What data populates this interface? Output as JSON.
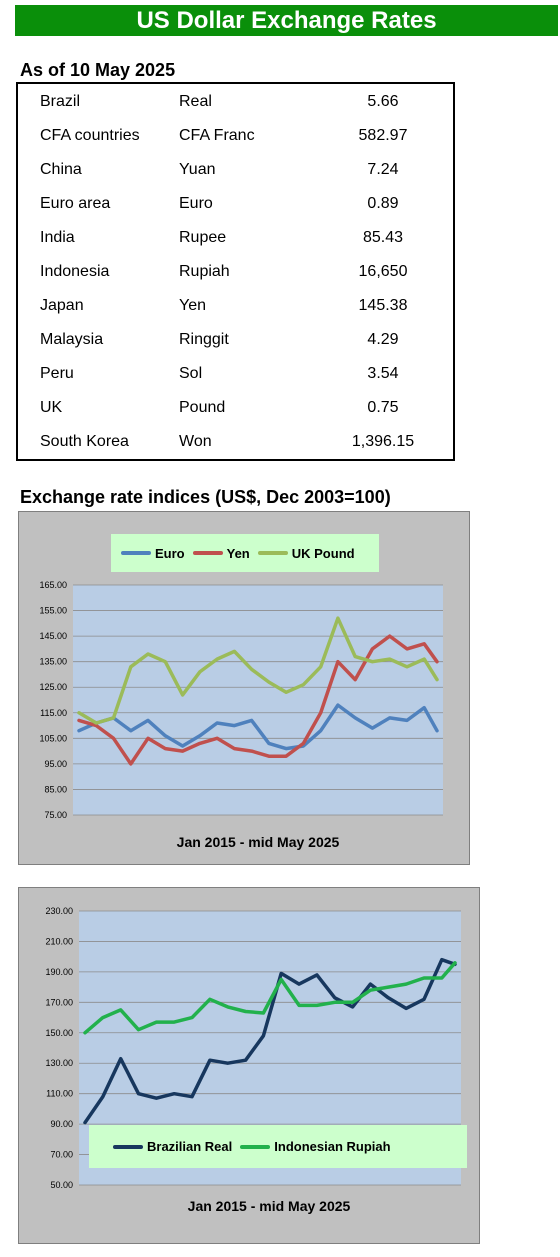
{
  "title": "US Dollar Exchange Rates",
  "rates_heading": "As of 10 May 2025",
  "rates": [
    {
      "country": "Brazil",
      "currency": "Real",
      "rate": "5.66"
    },
    {
      "country": "CFA countries",
      "currency": "CFA Franc",
      "rate": "582.97"
    },
    {
      "country": "China",
      "currency": "Yuan",
      "rate": "7.24"
    },
    {
      "country": "Euro area",
      "currency": "Euro",
      "rate": "0.89"
    },
    {
      "country": "India",
      "currency": "Rupee",
      "rate": "85.43"
    },
    {
      "country": "Indonesia",
      "currency": "Rupiah",
      "rate": "16,650"
    },
    {
      "country": "Japan",
      "currency": "Yen",
      "rate": "145.38"
    },
    {
      "country": "Malaysia",
      "currency": "Ringgit",
      "rate": "4.29"
    },
    {
      "country": "Peru",
      "currency": "Sol",
      "rate": "3.54"
    },
    {
      "country": "UK",
      "currency": "Pound",
      "rate": "0.75"
    },
    {
      "country": "South Korea",
      "currency": "Won",
      "rate": "1,396.15"
    }
  ],
  "indices_heading": "Exchange rate indices (US$, Dec 2003=100)",
  "chart_data": [
    {
      "type": "line",
      "title": "",
      "xlabel": "Jan 2015 - mid May 2025",
      "ylabel": "",
      "ylim": [
        75,
        165
      ],
      "yticks": [
        "165.00",
        "155.00",
        "145.00",
        "135.00",
        "125.00",
        "115.00",
        "105.00",
        "95.00",
        "85.00",
        "75.00"
      ],
      "grid": true,
      "legend": "top",
      "x": [
        2015.0,
        2015.5,
        2016.0,
        2016.5,
        2017.0,
        2017.5,
        2018.0,
        2018.5,
        2019.0,
        2019.5,
        2020.0,
        2020.5,
        2021.0,
        2021.5,
        2022.0,
        2022.5,
        2023.0,
        2023.5,
        2024.0,
        2024.5,
        2025.0,
        2025.37
      ],
      "series": [
        {
          "name": "Euro",
          "color": "#4f81bd",
          "values": [
            108,
            111,
            113,
            108,
            112,
            106,
            102,
            106,
            111,
            110,
            112,
            103,
            101,
            102,
            108,
            118,
            113,
            109,
            113,
            112,
            117,
            108
          ]
        },
        {
          "name": "Yen",
          "color": "#c0504d",
          "values": [
            112,
            110,
            105,
            95,
            105,
            101,
            100,
            103,
            105,
            101,
            100,
            98,
            98,
            103,
            115,
            135,
            128,
            140,
            145,
            140,
            142,
            135
          ]
        },
        {
          "name": "UK Pound",
          "color": "#9bbb59",
          "values": [
            115,
            111,
            113,
            133,
            138,
            135,
            122,
            131,
            136,
            139,
            132,
            127,
            123,
            126,
            133,
            152,
            137,
            135,
            136,
            133,
            136,
            128
          ]
        }
      ]
    },
    {
      "type": "line",
      "title": "",
      "xlabel": "Jan 2015 -  mid May 2025",
      "ylabel": "",
      "ylim": [
        50,
        230
      ],
      "yticks": [
        "230.00",
        "210.00",
        "190.00",
        "170.00",
        "150.00",
        "130.00",
        "110.00",
        "90.00",
        "70.00",
        "50.00"
      ],
      "grid": true,
      "legend": "bottom",
      "x": [
        2015.0,
        2015.5,
        2016.0,
        2016.5,
        2017.0,
        2017.5,
        2018.0,
        2018.5,
        2019.0,
        2019.5,
        2020.0,
        2020.5,
        2021.0,
        2021.5,
        2022.0,
        2022.5,
        2023.0,
        2023.5,
        2024.0,
        2024.5,
        2025.0,
        2025.37
      ],
      "series": [
        {
          "name": "Brazilian Real",
          "color": "#17375e",
          "values": [
            91,
            108,
            133,
            110,
            107,
            110,
            108,
            132,
            130,
            132,
            148,
            189,
            182,
            188,
            173,
            167,
            182,
            173,
            166,
            172,
            198,
            195
          ]
        },
        {
          "name": "Indonesian Rupiah",
          "color": "#22b14c",
          "values": [
            150,
            160,
            165,
            152,
            157,
            157,
            160,
            172,
            167,
            164,
            163,
            185,
            168,
            168,
            170,
            170,
            178,
            180,
            182,
            186,
            186,
            196
          ]
        }
      ]
    }
  ]
}
